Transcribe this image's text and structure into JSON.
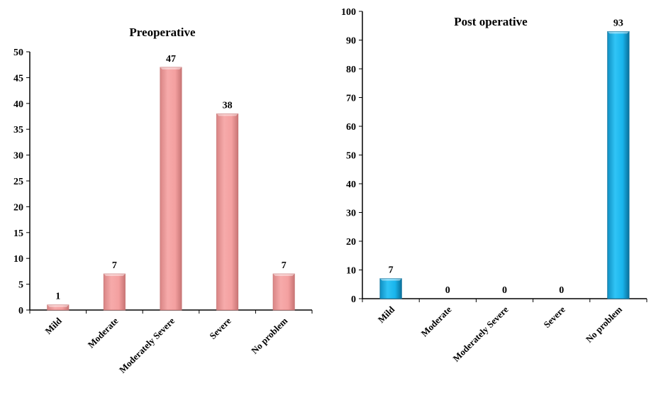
{
  "chart_data": [
    {
      "type": "bar",
      "title": "Preoperative",
      "xlabel": "",
      "ylabel": "",
      "categories": [
        "Mild",
        "Moderate",
        "Moderately Severe",
        "Severe",
        "No problem"
      ],
      "values": [
        1,
        7,
        47,
        38,
        7
      ],
      "ylim": [
        0,
        50
      ],
      "ytick_step": 5,
      "grid": false,
      "bar_color": "#f4a0a0",
      "bar_color_dark": "#c87575"
    },
    {
      "type": "bar",
      "title": "Post operative",
      "xlabel": "",
      "ylabel": "",
      "categories": [
        "Mild",
        "Moderate",
        "Moderately Severe",
        "Severe",
        "No problem"
      ],
      "values": [
        7,
        0,
        0,
        0,
        93
      ],
      "ylim": [
        0,
        100
      ],
      "ytick_step": 10,
      "grid": false,
      "bar_color": "#19b4ec",
      "bar_color_dark": "#0a6f9a"
    }
  ]
}
